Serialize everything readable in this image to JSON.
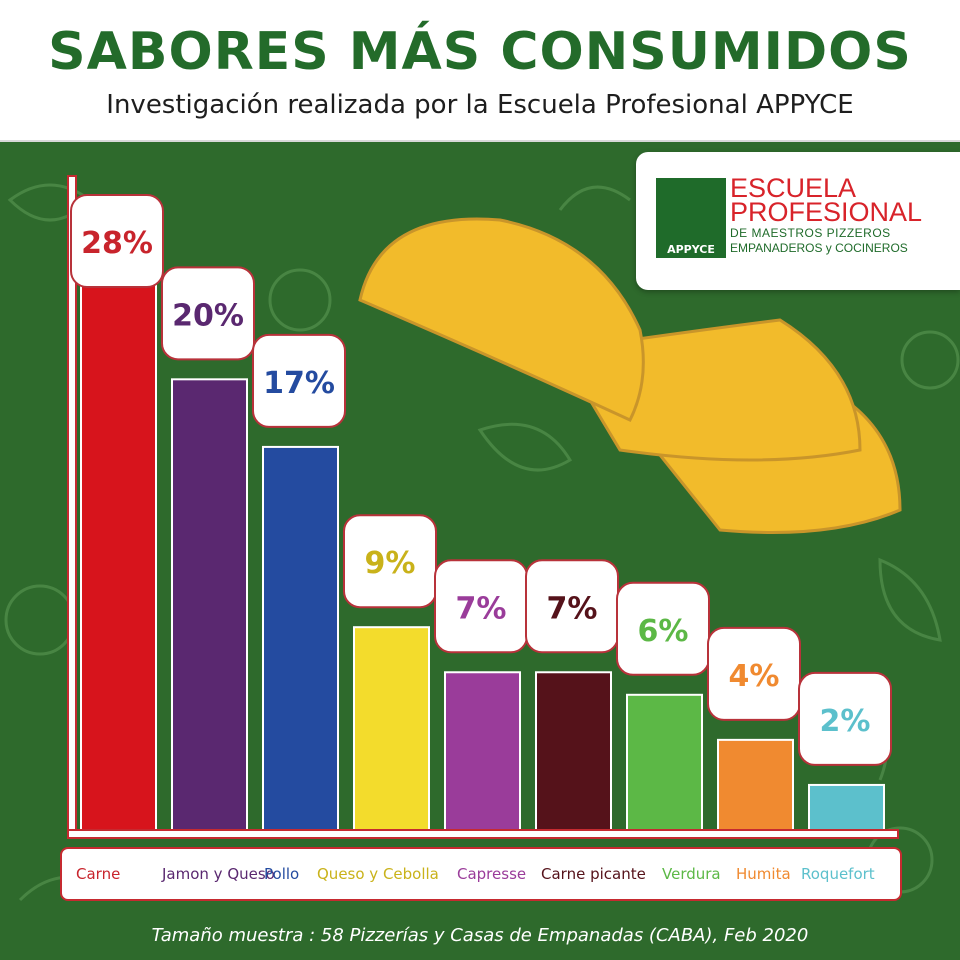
{
  "header": {
    "title": "SABORES MÁS CONSUMIDOS",
    "subtitle": "Investigación realizada por la Escuela Profesional APPYCE"
  },
  "logo": {
    "line1": "ESCUELA",
    "line2": "PROFESIONAL",
    "line3": "DE MAESTROS PIZZEROS",
    "line4": "EMPANADEROS y COCINEROS",
    "band": "APPYCE"
  },
  "chart_data": {
    "type": "bar",
    "categories": [
      "Carne",
      "Jamon y Queso",
      "Pollo",
      "Queso y Cebolla",
      "Capresse",
      "Carne picante",
      "Verdura",
      "Humita",
      "Roquefort"
    ],
    "values": [
      28,
      20,
      17,
      9,
      7,
      7,
      6,
      4,
      2
    ],
    "value_labels": [
      "28%",
      "20%",
      "17%",
      "9%",
      "7%",
      "7%",
      "6%",
      "4%",
      "2%"
    ],
    "colors": [
      "#d7141c",
      "#5a2870",
      "#244ba0",
      "#f3dc2c",
      "#9a3c9a",
      "#55121a",
      "#5cb846",
      "#f08a30",
      "#5cc0cc"
    ],
    "label_colors": [
      "#c8242c",
      "#5a2870",
      "#244ba0",
      "#c9b21a",
      "#9a3c9a",
      "#55121a",
      "#5cb846",
      "#f08a30",
      "#5cc0cc"
    ],
    "title": "SABORES MÁS CONSUMIDOS",
    "ylim": [
      0,
      30
    ],
    "legend": "bottom"
  },
  "footnote": "Tamaño muestra : 58 Pizzerías y Casas de Empanadas (CABA), Feb 2020"
}
